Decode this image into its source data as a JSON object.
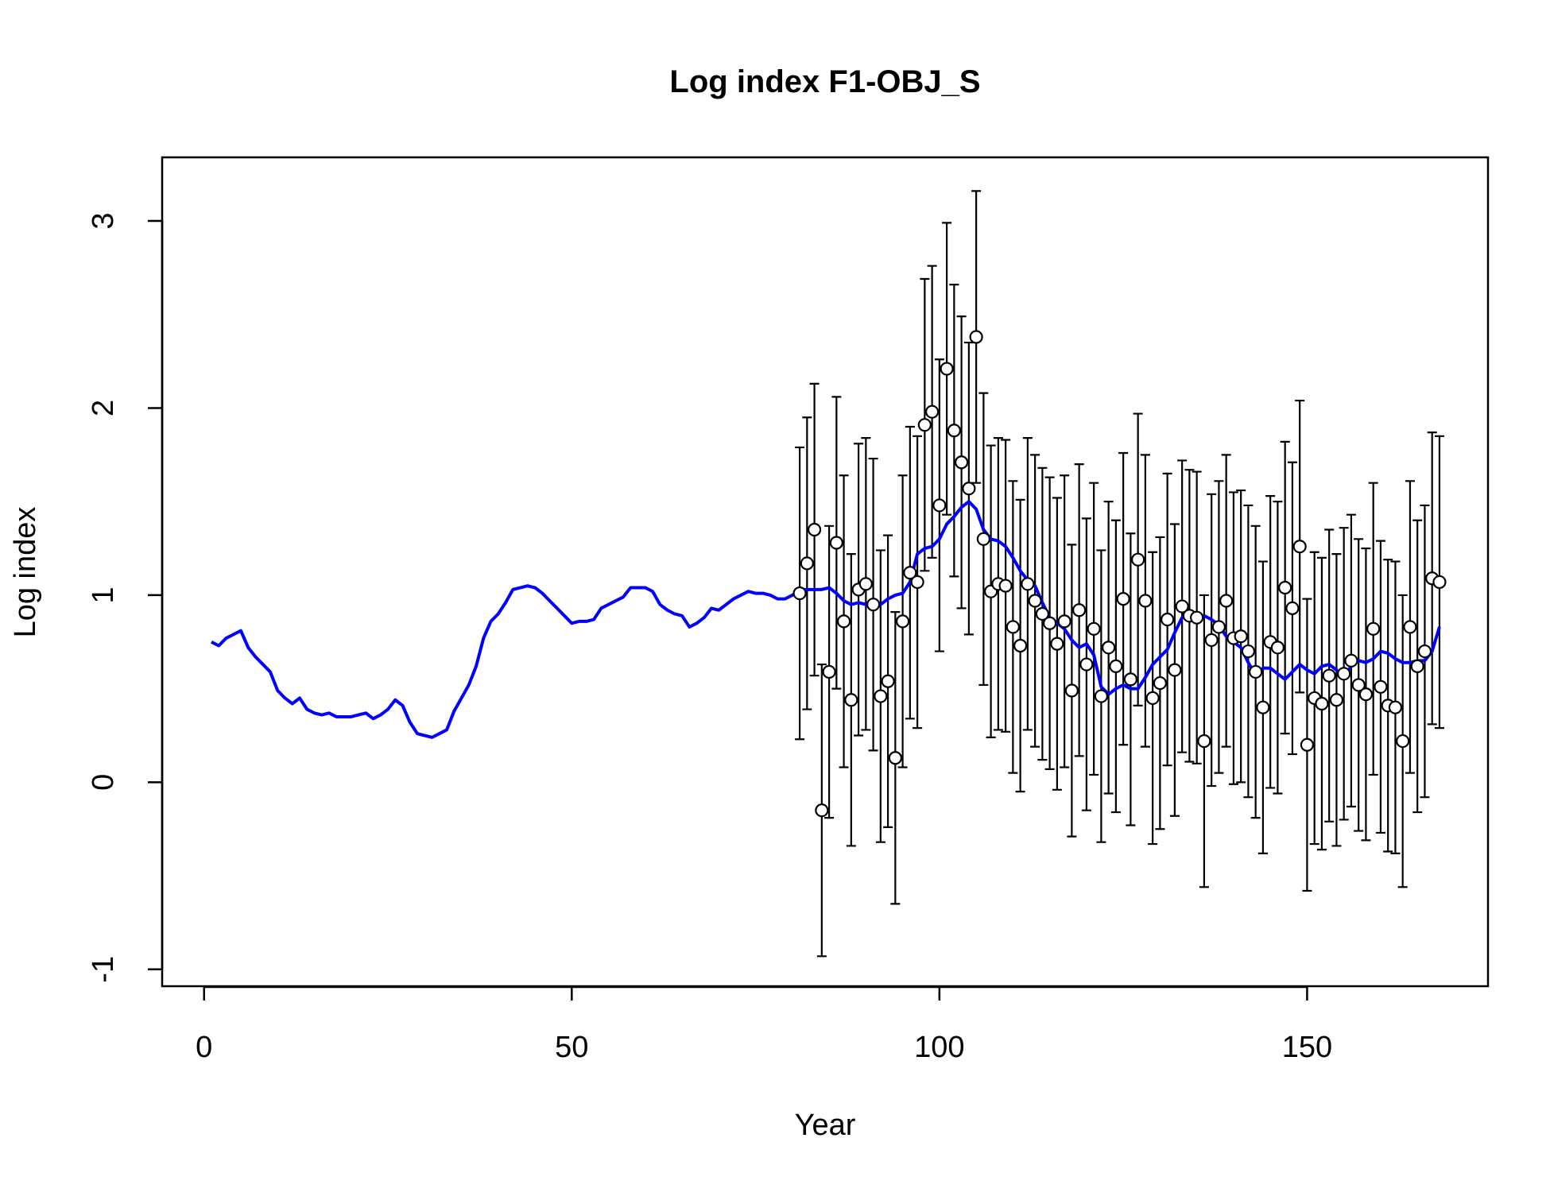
{
  "chart_data": {
    "type": "line-errorbar",
    "title": "Log index F1-OBJ_S",
    "xlabel": "Year",
    "ylabel": "Log index",
    "xlim": [
      -5.7,
      174.6
    ],
    "ylim": [
      -1.09,
      3.34
    ],
    "xticks": [
      0,
      50,
      100,
      150
    ],
    "yticks": [
      -1,
      0,
      1,
      2,
      3
    ],
    "series": [
      {
        "kind": "line",
        "color": "#0000ff",
        "x": [
          1,
          2,
          3,
          4,
          5,
          6,
          7,
          8,
          9,
          10,
          11,
          12,
          13,
          14,
          15,
          16,
          17,
          18,
          19,
          20,
          21,
          22,
          23,
          24,
          25,
          26,
          27,
          28,
          29,
          30,
          31,
          32,
          33,
          34,
          35,
          36,
          37,
          38,
          39,
          40,
          41,
          42,
          43,
          44,
          45,
          46,
          47,
          48,
          49,
          50,
          51,
          52,
          53,
          54,
          55,
          56,
          57,
          58,
          59,
          60,
          61,
          62,
          63,
          64,
          65,
          66,
          67,
          68,
          69,
          70,
          71,
          72,
          73,
          74,
          75,
          76,
          77,
          78,
          79,
          80,
          81,
          82,
          83,
          84,
          85,
          86,
          87,
          88,
          89,
          90,
          91,
          92,
          93,
          94,
          95,
          96,
          97,
          98,
          99,
          100,
          101,
          102,
          103,
          104,
          105,
          106,
          107,
          108,
          109,
          110,
          111,
          112,
          113,
          114,
          115,
          116,
          117,
          118,
          119,
          120,
          121,
          122,
          123,
          124,
          125,
          126,
          127,
          128,
          129,
          130,
          131,
          132,
          133,
          134,
          135,
          136,
          137,
          138,
          139,
          140,
          141,
          142,
          143,
          144,
          145,
          146,
          147,
          148,
          149,
          150,
          151,
          152,
          153,
          154,
          155,
          156,
          157,
          158,
          159,
          160,
          161,
          162,
          163,
          164,
          165,
          166,
          167,
          168
        ],
        "values": [
          0.75,
          0.73,
          0.77,
          0.79,
          0.81,
          0.72,
          0.67,
          0.63,
          0.59,
          0.49,
          0.45,
          0.42,
          0.45,
          0.39,
          0.37,
          0.36,
          0.37,
          0.35,
          0.35,
          0.35,
          0.36,
          0.37,
          0.34,
          0.36,
          0.39,
          0.44,
          0.41,
          0.32,
          0.26,
          0.25,
          0.24,
          0.26,
          0.28,
          0.38,
          0.45,
          0.52,
          0.62,
          0.77,
          0.86,
          0.9,
          0.96,
          1.03,
          1.04,
          1.05,
          1.04,
          1.01,
          0.97,
          0.93,
          0.89,
          0.85,
          0.86,
          0.86,
          0.87,
          0.93,
          0.95,
          0.97,
          0.99,
          1.04,
          1.04,
          1.04,
          1.02,
          0.95,
          0.92,
          0.9,
          0.89,
          0.83,
          0.85,
          0.88,
          0.93,
          0.92,
          0.95,
          0.98,
          1.0,
          1.02,
          1.01,
          1.01,
          1.0,
          0.98,
          0.98,
          1.0,
          1.03,
          1.03,
          1.03,
          1.03,
          1.04,
          1.01,
          0.97,
          0.95,
          0.96,
          0.95,
          0.92,
          0.95,
          0.98,
          1.0,
          1.01,
          1.07,
          1.22,
          1.25,
          1.26,
          1.3,
          1.38,
          1.42,
          1.47,
          1.5,
          1.46,
          1.35,
          1.3,
          1.29,
          1.26,
          1.2,
          1.13,
          1.08,
          1.05,
          0.96,
          0.88,
          0.85,
          0.82,
          0.76,
          0.72,
          0.74,
          0.68,
          0.51,
          0.47,
          0.5,
          0.52,
          0.5,
          0.5,
          0.56,
          0.63,
          0.67,
          0.71,
          0.8,
          0.88,
          0.9,
          0.89,
          0.89,
          0.87,
          0.84,
          0.78,
          0.75,
          0.72,
          0.64,
          0.57,
          0.61,
          0.61,
          0.58,
          0.55,
          0.59,
          0.63,
          0.6,
          0.58,
          0.62,
          0.63,
          0.6,
          0.56,
          0.62,
          0.65,
          0.64,
          0.66,
          0.7,
          0.69,
          0.66,
          0.64,
          0.64,
          0.65,
          0.65,
          0.7,
          0.83
        ]
      },
      {
        "kind": "points",
        "color": "#ffffff",
        "x": [
          81,
          82,
          83,
          84,
          85,
          86,
          87,
          88,
          89,
          90,
          91,
          92,
          93,
          94,
          95,
          96,
          97,
          98,
          99,
          100,
          101,
          102,
          103,
          104,
          105,
          106,
          107,
          108,
          109,
          110,
          111,
          112,
          113,
          114,
          115,
          116,
          117,
          118,
          119,
          120,
          121,
          122,
          123,
          124,
          125,
          126,
          127,
          128,
          129,
          130,
          131,
          132,
          133,
          134,
          135,
          136,
          137,
          138,
          139,
          140,
          141,
          142,
          143,
          144,
          145,
          146,
          147,
          148,
          149,
          150,
          151,
          152,
          153,
          154,
          155,
          156,
          157,
          158,
          159,
          160,
          161,
          162,
          163,
          164,
          165,
          166,
          167,
          168
        ],
        "values": [
          1.01,
          1.17,
          1.35,
          -0.15,
          0.59,
          1.28,
          0.86,
          0.44,
          1.03,
          1.06,
          0.95,
          0.46,
          0.54,
          0.13,
          0.86,
          1.12,
          1.07,
          1.91,
          1.98,
          1.48,
          2.21,
          1.88,
          1.71,
          1.57,
          2.38,
          1.3,
          1.02,
          1.06,
          1.05,
          0.83,
          0.73,
          1.06,
          0.97,
          0.9,
          0.85,
          0.74,
          0.86,
          0.49,
          0.92,
          0.63,
          0.82,
          0.46,
          0.72,
          0.62,
          0.98,
          0.55,
          1.19,
          0.97,
          0.45,
          0.53,
          0.87,
          0.6,
          0.94,
          0.89,
          0.88,
          0.22,
          0.76,
          0.83,
          0.97,
          0.77,
          0.78,
          0.7,
          0.59,
          0.4,
          0.75,
          0.72,
          1.04,
          0.93,
          1.26,
          0.2,
          0.45,
          0.42,
          0.57,
          0.44,
          0.58,
          0.65,
          0.52,
          0.47,
          0.82,
          0.51,
          0.41,
          0.4,
          0.22,
          0.83,
          0.62,
          0.7,
          1.09,
          1.07
        ],
        "errors": [
          0.78,
          0.78,
          0.78,
          0.78,
          0.78,
          0.78,
          0.78,
          0.78,
          0.78,
          0.78,
          0.78,
          0.78,
          0.78,
          0.78,
          0.78,
          0.78,
          0.78,
          0.78,
          0.78,
          0.78,
          0.78,
          0.78,
          0.78,
          0.78,
          0.78,
          0.78,
          0.78,
          0.78,
          0.78,
          0.78,
          0.78,
          0.78,
          0.78,
          0.78,
          0.78,
          0.78,
          0.78,
          0.78,
          0.78,
          0.78,
          0.78,
          0.78,
          0.78,
          0.78,
          0.78,
          0.78,
          0.78,
          0.78,
          0.78,
          0.78,
          0.78,
          0.78,
          0.78,
          0.78,
          0.78,
          0.78,
          0.78,
          0.78,
          0.78,
          0.78,
          0.78,
          0.78,
          0.78,
          0.78,
          0.78,
          0.78,
          0.78,
          0.78,
          0.78,
          0.78,
          0.78,
          0.78,
          0.78,
          0.78,
          0.78,
          0.78,
          0.78,
          0.78,
          0.78,
          0.78,
          0.78,
          0.78,
          0.78,
          0.78,
          0.78,
          0.78,
          0.78,
          0.78
        ]
      }
    ]
  }
}
